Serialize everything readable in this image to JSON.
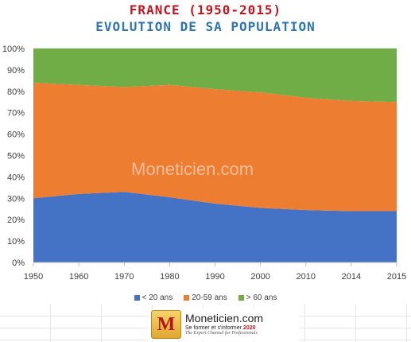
{
  "title_line1": "FRANCE (1950-2015)",
  "title_line2": "EVOLUTION DE SA POPULATION",
  "watermark": "Moneticien.com",
  "logo": {
    "letter": "M",
    "name": "Moneticien.com",
    "tagline": "Se former et s'informer",
    "year": "2020",
    "subtitle": "The Expert Channel for Professionals"
  },
  "colors": {
    "under20": "#4472c4",
    "age20_59": "#ed7d31",
    "over60": "#70ad47",
    "title1": "#c0171f",
    "title2": "#2e74b5"
  },
  "chart_data": {
    "type": "area",
    "stacked": true,
    "percent": true,
    "categories": [
      "1950",
      "1960",
      "1970",
      "1980",
      "1990",
      "2000",
      "2010",
      "2014",
      "2015"
    ],
    "series": [
      {
        "name": "< 20 ans",
        "values": [
          30,
          32,
          33,
          30.5,
          27.5,
          25.5,
          24.5,
          24,
          24
        ]
      },
      {
        "name": "20-59 ans",
        "values": [
          54,
          51,
          49,
          52.5,
          53.5,
          54,
          52.5,
          51.5,
          51
        ]
      },
      {
        "name": "> 60 ans",
        "values": [
          16,
          17,
          18,
          17,
          19,
          20.5,
          23,
          24.5,
          25
        ]
      }
    ],
    "ylim": [
      0,
      100
    ],
    "yticks": [
      "0%",
      "10%",
      "20%",
      "30%",
      "40%",
      "50%",
      "60%",
      "70%",
      "80%",
      "90%",
      "100%"
    ],
    "grid": true,
    "legend": "bottom"
  }
}
